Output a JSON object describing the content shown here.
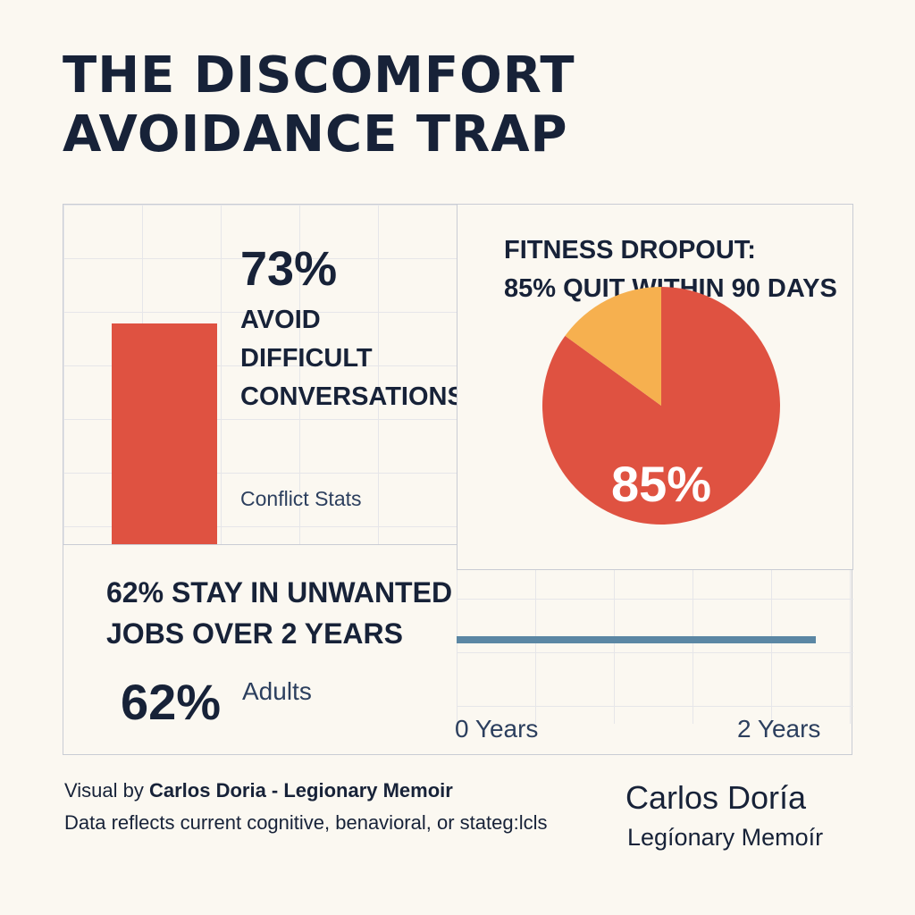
{
  "title": {
    "line1": "THE DISCOMFORT",
    "line2": "AVOIDANCE TRAP"
  },
  "colors": {
    "red": "#df5241",
    "amber": "#f6b04f",
    "navy": "#172238",
    "steel": "#5b87a4",
    "background": "#fbf8f1"
  },
  "conflict_panel": {
    "big_value": "73%",
    "label_lines": [
      "AVOID",
      "DIFFICULT",
      "CONVERSATIONS"
    ],
    "caption": "Conflict Stats"
  },
  "fitness_panel": {
    "title_lines": [
      "FITNESS DROPOUT:",
      "85% QUIT WITHIN 90 DAYS"
    ],
    "slice_label": "85%"
  },
  "jobs_panel": {
    "title_lines": [
      "62% STAY IN UNWANTED",
      "JOBS OVER 2 YEARS"
    ],
    "big_value": "62%",
    "sub_label": "Adults",
    "tick_start": "0 Years",
    "tick_end": "2 Years"
  },
  "footer": {
    "credit_prefix": "Visual by ",
    "credit_bold": "Carlos Doria - Legionary Memoir",
    "note": "Data reflects current cognitive, benavioral, or stateg:lcls",
    "signature_name": "Carlos Doría",
    "signature_sub": "Legíonary Memoír"
  },
  "chart_data": [
    {
      "type": "bar",
      "categories": [
        "AVOID DIFFICULT CONVERSATIONS"
      ],
      "values": [
        73
      ],
      "unit": "%",
      "ylim": [
        0,
        100
      ],
      "grid": true
    },
    {
      "type": "pie",
      "title": "FITNESS DROPOUT: 85% QUIT WITHIN 90 DAYS",
      "slices": [
        {
          "label": "85%",
          "value": 85,
          "color": "#df5241"
        },
        {
          "label": "",
          "value": 15,
          "color": "#f6b04f"
        }
      ]
    },
    {
      "type": "line",
      "title": "62% STAY IN UNWANTED JOBS OVER 2 YEARS",
      "x": [
        0,
        2
      ],
      "x_tick_labels": [
        "0 Years",
        "2 Years"
      ],
      "series": [
        {
          "values": [
            62,
            62
          ],
          "color": "#5b87a4"
        }
      ],
      "grid": true
    }
  ]
}
